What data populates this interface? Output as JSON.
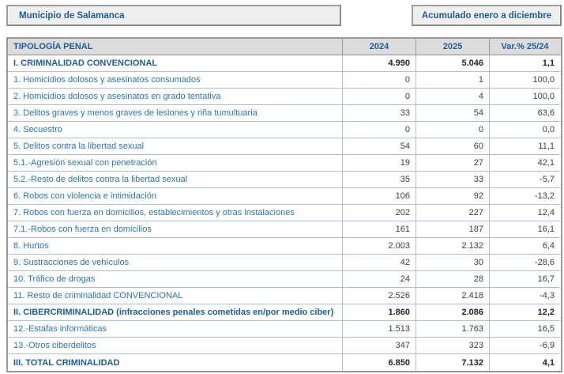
{
  "header": {
    "municipality_label": "Municipio de Salamanca",
    "period_label": "Acumulado enero a diciembre"
  },
  "table": {
    "columns": [
      "TIPOLOGÍA PENAL",
      "2024",
      "2025",
      "Var.% 25/24"
    ],
    "rows": [
      {
        "label": "I. CRIMINALIDAD CONVENCIONAL",
        "v2024": "4.990",
        "v2025": "5.046",
        "variation": "1,1",
        "bold": true
      },
      {
        "label": "1. Homicidios dolosos y asesinatos consumados",
        "v2024": "0",
        "v2025": "1",
        "variation": "100,0",
        "bold": false
      },
      {
        "label": "2. Homicidios dolosos y asesinatos en grado tentativa",
        "v2024": "0",
        "v2025": "4",
        "variation": "100,0",
        "bold": false
      },
      {
        "label": "3. Delitos graves y menos graves de lesiones y riña tumultuaria",
        "v2024": "33",
        "v2025": "54",
        "variation": "63,6",
        "bold": false
      },
      {
        "label": "4. Secuestro",
        "v2024": "0",
        "v2025": "0",
        "variation": "0,0",
        "bold": false
      },
      {
        "label": "5. Delitos contra la libertad sexual",
        "v2024": "54",
        "v2025": "60",
        "variation": "11,1",
        "bold": false
      },
      {
        "label": "5.1.-Agresión sexual con penetración",
        "v2024": "19",
        "v2025": "27",
        "variation": "42,1",
        "bold": false
      },
      {
        "label": "5.2.-Resto de delitos contra la libertad sexual",
        "v2024": "35",
        "v2025": "33",
        "variation": "-5,7",
        "bold": false
      },
      {
        "label": "6. Robos con violencia e intimidación",
        "v2024": "106",
        "v2025": "92",
        "variation": "-13,2",
        "bold": false
      },
      {
        "label": "7. Robos con fuerza en domicilios, establecimientos y otras instalaciones",
        "v2024": "202",
        "v2025": "227",
        "variation": "12,4",
        "bold": false
      },
      {
        "label": "7.1.-Robos con fuerza en domicilios",
        "v2024": "161",
        "v2025": "187",
        "variation": "16,1",
        "bold": false
      },
      {
        "label": "8. Hurtos",
        "v2024": "2.003",
        "v2025": "2.132",
        "variation": "6,4",
        "bold": false
      },
      {
        "label": "9. Sustracciones de vehículos",
        "v2024": "42",
        "v2025": "30",
        "variation": "-28,6",
        "bold": false
      },
      {
        "label": "10. Tráfico de drogas",
        "v2024": "24",
        "v2025": "28",
        "variation": "16,7",
        "bold": false
      },
      {
        "label": "11. Resto de criminalidad CONVENCIONAL",
        "v2024": "2.526",
        "v2025": "2.418",
        "variation": "-4,3",
        "bold": false
      },
      {
        "label": "II. CIBERCRIMINALIDAD (infracciones penales cometidas en/por medio ciber)",
        "v2024": "1.860",
        "v2025": "2.086",
        "variation": "12,2",
        "bold": true
      },
      {
        "label": "12.-Estafas informáticas",
        "v2024": "1.513",
        "v2025": "1.763",
        "variation": "16,5",
        "bold": false
      },
      {
        "label": "13.-Otros ciberdelitos",
        "v2024": "347",
        "v2025": "323",
        "variation": "-6,9",
        "bold": false
      },
      {
        "label": "III. TOTAL CRIMINALIDAD",
        "v2024": "6.850",
        "v2025": "7.132",
        "variation": "4,1",
        "bold": true
      }
    ]
  },
  "colors": {
    "box_background": "#efefef",
    "box_border": "#a0a0a0",
    "table_header_background": "#dcdcdc",
    "dark_blue_text": "#1f5c99",
    "blue_text": "#2e75b6",
    "number_text": "#3f3f3f",
    "grid_line": "#aebfda",
    "outer_border": "#989898"
  }
}
